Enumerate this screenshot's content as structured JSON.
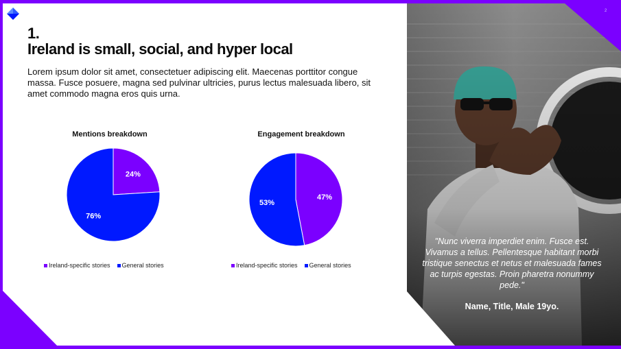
{
  "slide": {
    "page_number": "2",
    "heading_number": "1.",
    "heading": "Ireland is small, social, and hyper local",
    "body": "Lorem ipsum dolor sit amet, consectetuer adipiscing elit. Maecenas porttitor congue massa. Fusce posuere, magna sed pulvinar ultricies, purus lectus malesuada libero, sit amet commodo magna eros quis urna.",
    "quote": "\"Nunc viverra imperdiet enim. Fusce est. Vivamus a tellus. Pellentesque habitant morbi tristique senectus et netus et malesuada fames ac turpis egestas. Proin pharetra nonummy pede.\"",
    "attribution": "Name, Title, Male 19yo."
  },
  "colors": {
    "accent_purple": "#7b00ff",
    "accent_blue": "#0019ff"
  },
  "chart_data": [
    {
      "type": "pie",
      "title": "Mentions breakdown",
      "categories": [
        "Ireland-specific stories",
        "General stories"
      ],
      "values": [
        24,
        76
      ],
      "labels": [
        "24%",
        "76%"
      ],
      "colors": [
        "#7b00ff",
        "#0019ff"
      ],
      "legend": "bottom"
    },
    {
      "type": "pie",
      "title": "Engagement breakdown",
      "categories": [
        "Ireland-specific stories",
        "General stories"
      ],
      "values": [
        47,
        53
      ],
      "labels": [
        "47%",
        "53%"
      ],
      "colors": [
        "#7b00ff",
        "#0019ff"
      ],
      "legend": "bottom"
    }
  ]
}
